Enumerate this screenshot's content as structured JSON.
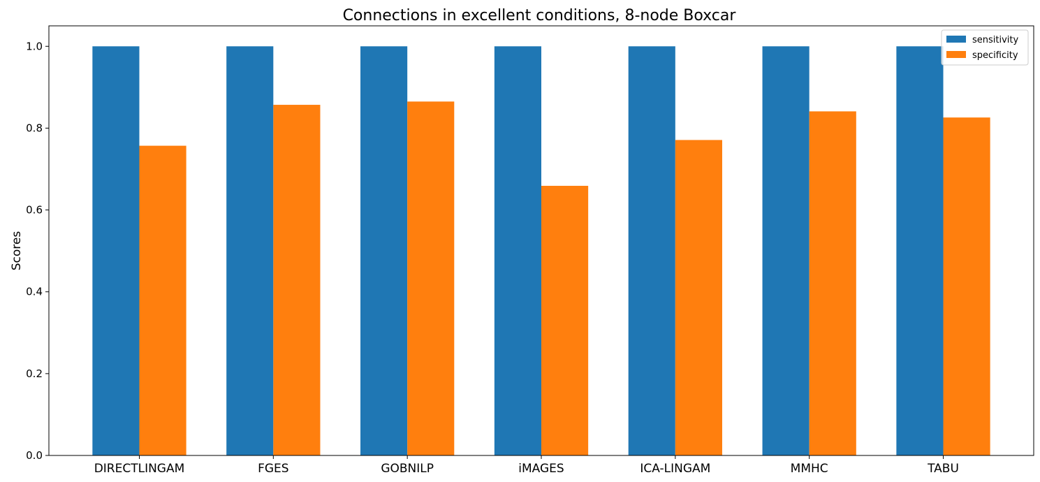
{
  "chart_data": {
    "type": "bar",
    "title": "Connections in excellent conditions, 8-node Boxcar",
    "xlabel": "",
    "ylabel": "Scores",
    "ylim": [
      0,
      1.05
    ],
    "yticks": [
      "0.0",
      "0.2",
      "0.4",
      "0.6",
      "0.8",
      "1.0"
    ],
    "categories": [
      "DIRECTLINGAM",
      "FGES",
      "GOBNILP",
      "iMAGES",
      "ICA-LINGAM",
      "MMHC",
      "TABU"
    ],
    "series": [
      {
        "name": "sensitivity",
        "color": "#1f77b4",
        "values": [
          1.0,
          1.0,
          1.0,
          1.0,
          1.0,
          1.0,
          1.0
        ]
      },
      {
        "name": "specificity",
        "color": "#ff7f0e",
        "values": [
          0.757,
          0.857,
          0.865,
          0.659,
          0.771,
          0.841,
          0.826
        ]
      }
    ],
    "grid": false,
    "legend": "top-right"
  }
}
